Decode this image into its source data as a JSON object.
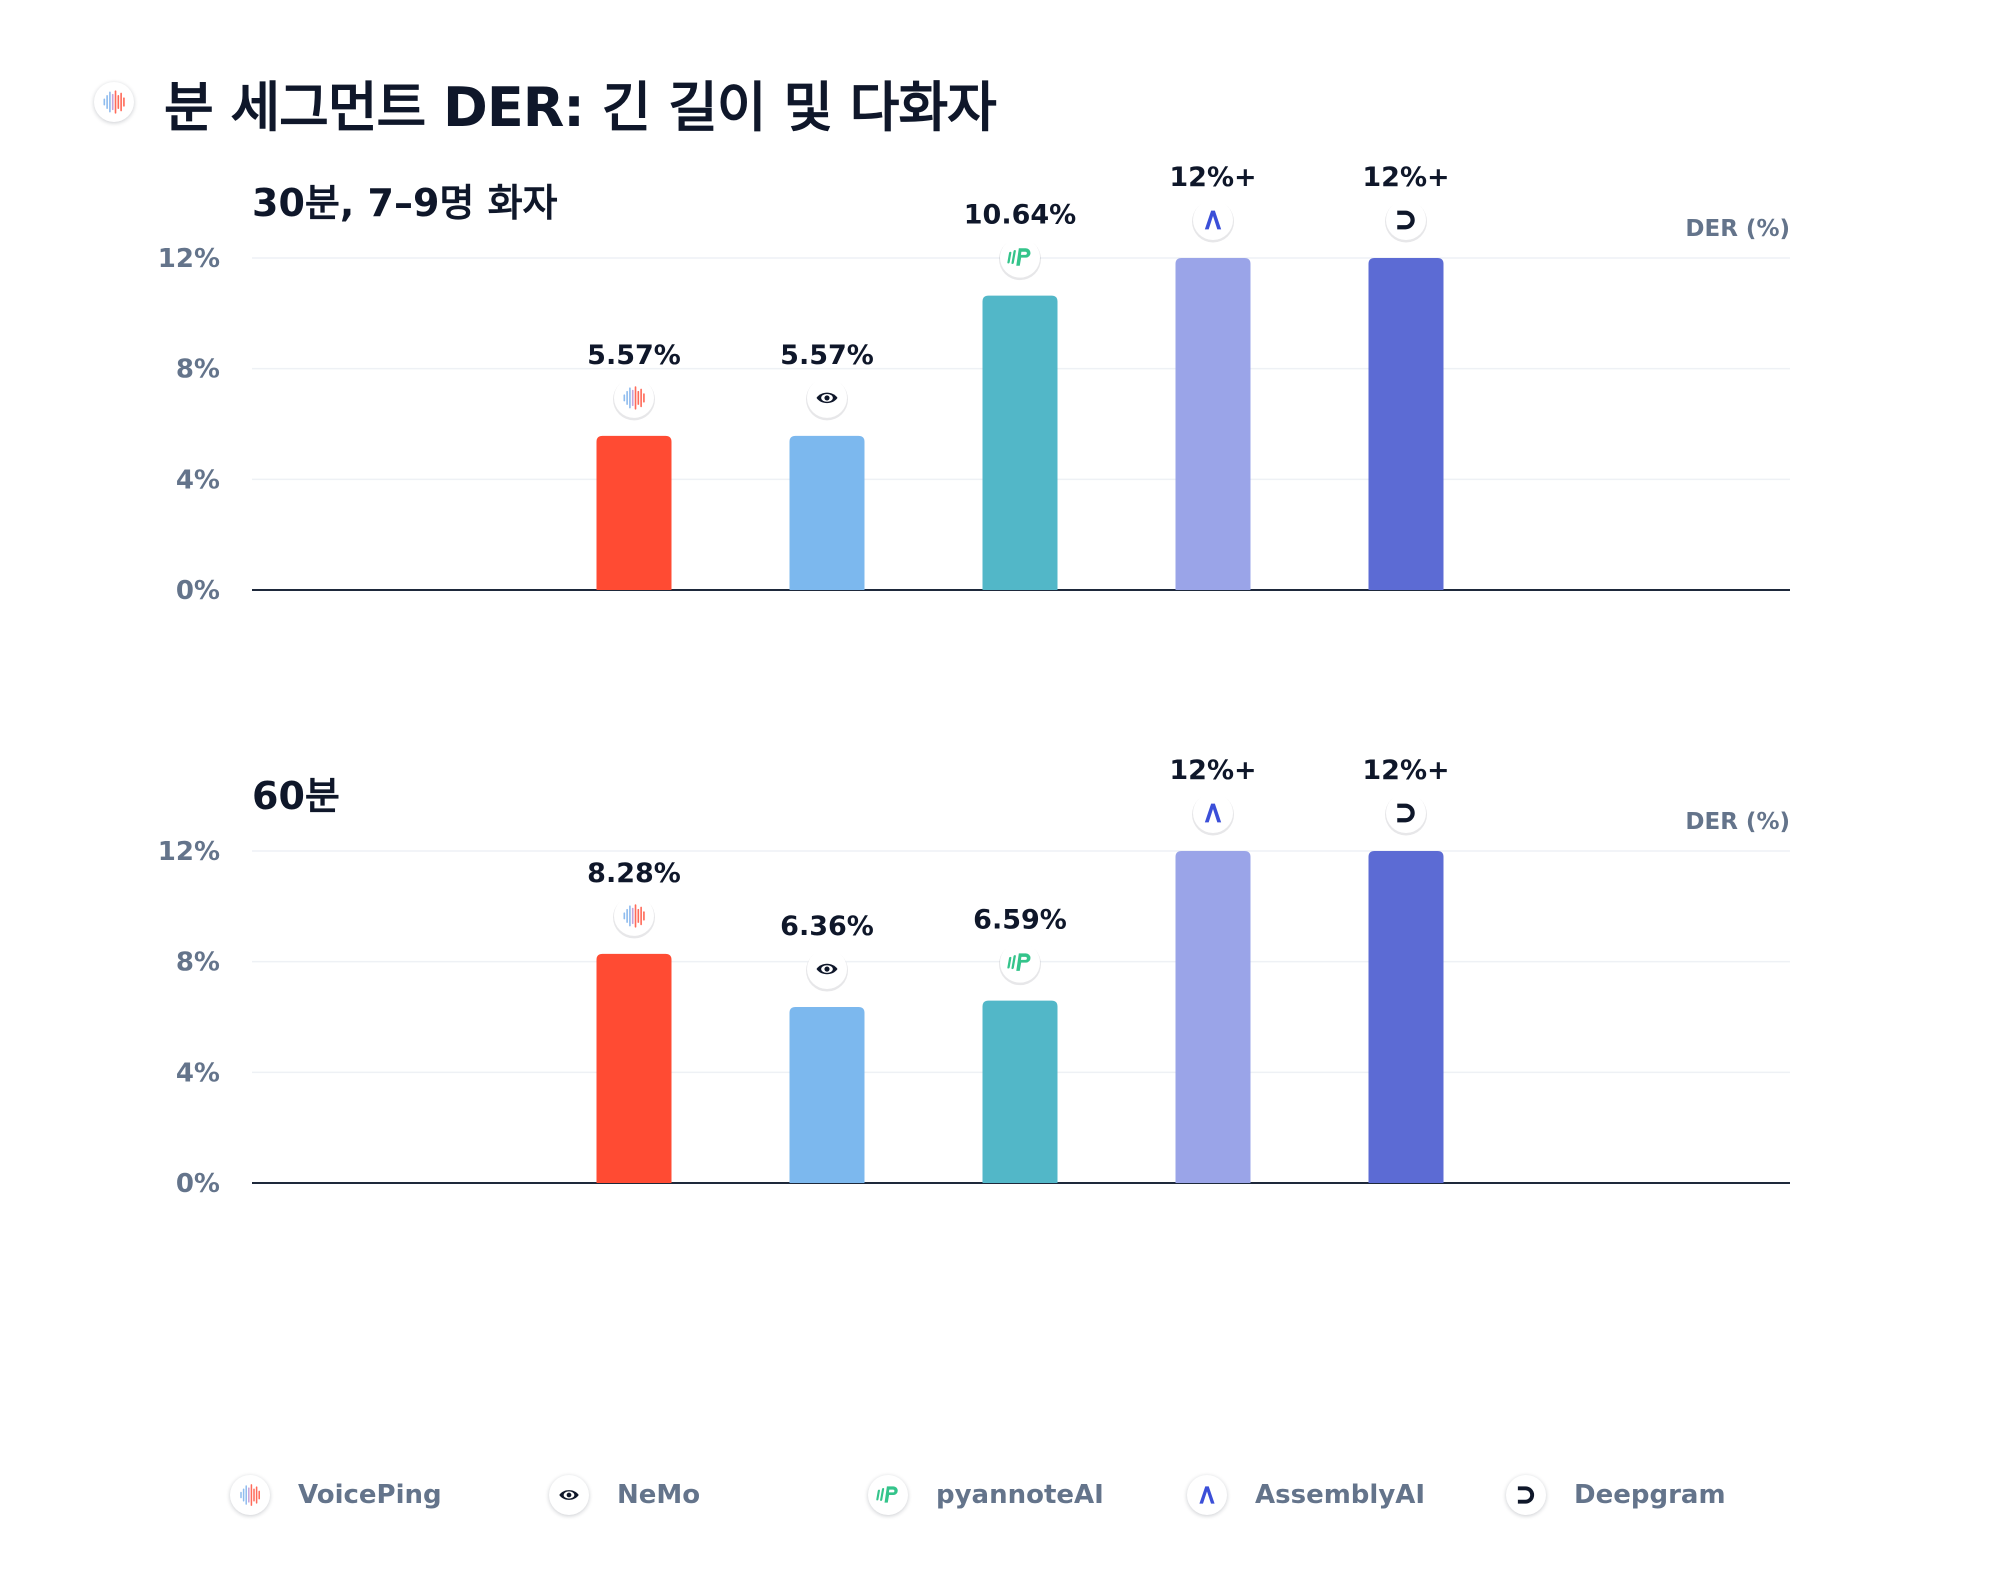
{
  "page": {
    "title": "분 세그먼트 DER: 긴 길이 및 다화자"
  },
  "legend": [
    {
      "name": "VoicePing",
      "icon": "voiceping-waveform-icon"
    },
    {
      "name": "NeMo",
      "icon": "nvidia-eye-icon"
    },
    {
      "name": "pyannoteAI",
      "icon": "pyannote-logo-icon"
    },
    {
      "name": "AssemblyAI",
      "icon": "assemblyai-logo-icon"
    },
    {
      "name": "Deepgram",
      "icon": "deepgram-logo-icon"
    }
  ],
  "chart_data": [
    {
      "type": "bar",
      "title": "30분, 7–9명 화자",
      "ylabel": "DER (%)",
      "ylim": [
        0,
        12
      ],
      "yticks": [
        "0%",
        "4%",
        "8%",
        "12%"
      ],
      "grid": true,
      "categories": [
        "VoicePing",
        "NeMo",
        "pyannoteAI",
        "AssemblyAI",
        "Deepgram"
      ],
      "values": [
        5.57,
        5.57,
        10.64,
        12,
        12
      ],
      "data_labels": [
        "5.57%",
        "5.57%",
        "10.64%",
        "12%+",
        "12%+"
      ],
      "colors": [
        "#ff4b33",
        "#7cb8ee",
        "#52b7c8",
        "#9aa4e8",
        "#5c6bd4"
      ]
    },
    {
      "type": "bar",
      "title": "60분",
      "ylabel": "DER (%)",
      "ylim": [
        0,
        12
      ],
      "yticks": [
        "0%",
        "4%",
        "8%",
        "12%"
      ],
      "grid": true,
      "categories": [
        "VoicePing",
        "NeMo",
        "pyannoteAI",
        "AssemblyAI",
        "Deepgram"
      ],
      "values": [
        8.28,
        6.36,
        6.59,
        12,
        12
      ],
      "data_labels": [
        "8.28%",
        "6.36%",
        "6.59%",
        "12%+",
        "12%+"
      ],
      "colors": [
        "#ff4b33",
        "#7cb8ee",
        "#52b7c8",
        "#9aa4e8",
        "#5c6bd4"
      ]
    }
  ]
}
